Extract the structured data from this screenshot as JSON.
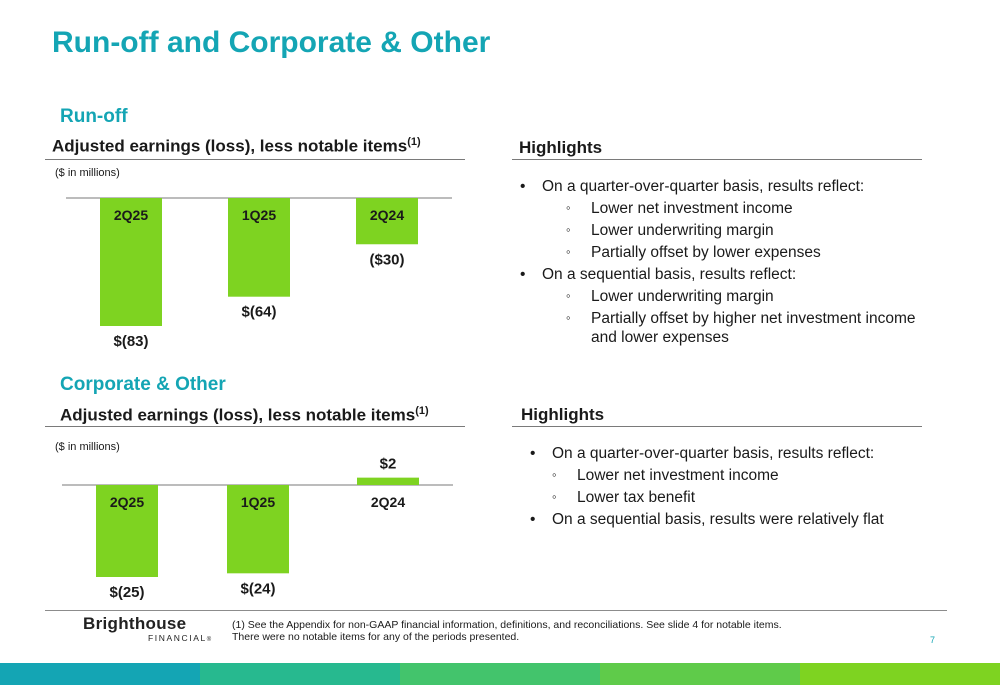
{
  "page": {
    "title": "Run-off and Corporate & Other",
    "page_number": "7"
  },
  "runoff": {
    "section_title": "Run-off",
    "chart_heading": "Adjusted earnings (loss), less notable items",
    "chart_heading_sup": "(1)",
    "units": "($ in millions)",
    "highlights_title": "Highlights",
    "bullets": [
      {
        "text": "On a quarter-over-quarter basis, results reflect:",
        "subs": [
          "Lower net investment income",
          "Lower underwriting margin",
          "Partially offset by lower expenses"
        ]
      },
      {
        "text": "On a sequential basis, results reflect:",
        "subs": [
          "Lower underwriting margin",
          "Partially offset by higher net investment income and lower expenses"
        ]
      }
    ]
  },
  "corporate": {
    "section_title": "Corporate & Other",
    "chart_heading": "Adjusted earnings (loss), less notable items",
    "chart_heading_sup": "(1)",
    "units": "($ in millions)",
    "highlights_title": "Highlights",
    "bullets": [
      {
        "text": "On a quarter-over-quarter basis, results reflect:",
        "subs": [
          "Lower net investment income",
          "Lower tax benefit"
        ]
      },
      {
        "text": "On a sequential basis, results were relatively flat",
        "subs": []
      }
    ]
  },
  "chart_data": [
    {
      "type": "bar",
      "categories": [
        "2Q25",
        "1Q25",
        "2Q24"
      ],
      "values": [
        -83,
        -64,
        -30
      ],
      "data_labels": [
        "$(83)",
        "$(64)",
        "($30)"
      ],
      "title": "Adjusted earnings (loss), less notable items(1)",
      "ylabel": "($ in millions)",
      "bar_color": "#7ed321"
    },
    {
      "type": "bar",
      "categories": [
        "2Q25",
        "1Q25",
        "2Q24"
      ],
      "values": [
        -25,
        -24,
        2
      ],
      "data_labels": [
        "$(25)",
        "$(24)",
        "$2"
      ],
      "title": "Adjusted earnings (loss), less notable items(1)",
      "ylabel": "($ in millions)",
      "bar_color": "#7ed321"
    }
  ],
  "footer": {
    "logo_main": "Brighthouse",
    "logo_sub": "FINANCIAL",
    "logo_mark": "®",
    "footnote_line1": "(1) See the Appendix for non-GAAP financial information, definitions, and reconciliations. See slide 4 for notable items.",
    "footnote_line2": "There were no notable items for any of the periods presented.",
    "stripe_colors": [
      "#14a5b4",
      "#27b98f",
      "#43c46c",
      "#5fcb4a",
      "#7ed321"
    ]
  }
}
